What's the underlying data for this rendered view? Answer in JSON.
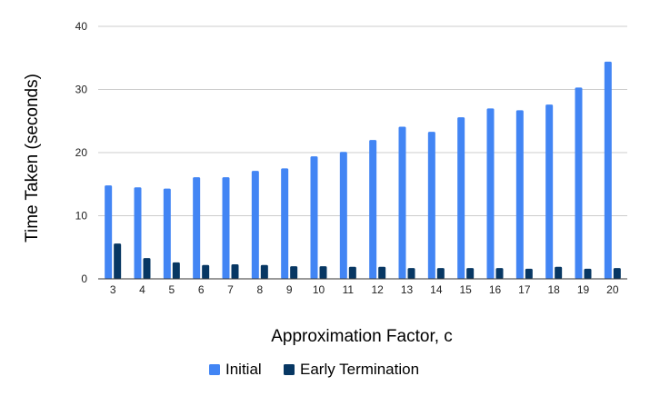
{
  "chart_data": {
    "type": "bar",
    "xlabel": "Approximation Factor, c",
    "ylabel": "Time Taken (seconds)",
    "ylim": [
      0,
      40
    ],
    "yticks": [
      0,
      10,
      20,
      30,
      40
    ],
    "grid": true,
    "legend_position": "bottom",
    "categories": [
      "3",
      "4",
      "5",
      "6",
      "7",
      "8",
      "9",
      "10",
      "11",
      "12",
      "13",
      "14",
      "15",
      "16",
      "17",
      "18",
      "19",
      "20"
    ],
    "series": [
      {
        "name": "Initial",
        "color": "#4285f4",
        "values": [
          14.8,
          14.5,
          14.3,
          16.1,
          16.1,
          17.1,
          17.5,
          19.4,
          20.1,
          22.0,
          24.1,
          23.3,
          25.6,
          27.0,
          26.7,
          27.6,
          30.3,
          34.4
        ]
      },
      {
        "name": "Early Termination",
        "color": "#073763",
        "values": [
          5.6,
          3.3,
          2.6,
          2.2,
          2.3,
          2.2,
          2.0,
          2.0,
          1.9,
          1.9,
          1.7,
          1.7,
          1.7,
          1.7,
          1.6,
          1.9,
          1.6,
          1.7
        ]
      }
    ]
  }
}
